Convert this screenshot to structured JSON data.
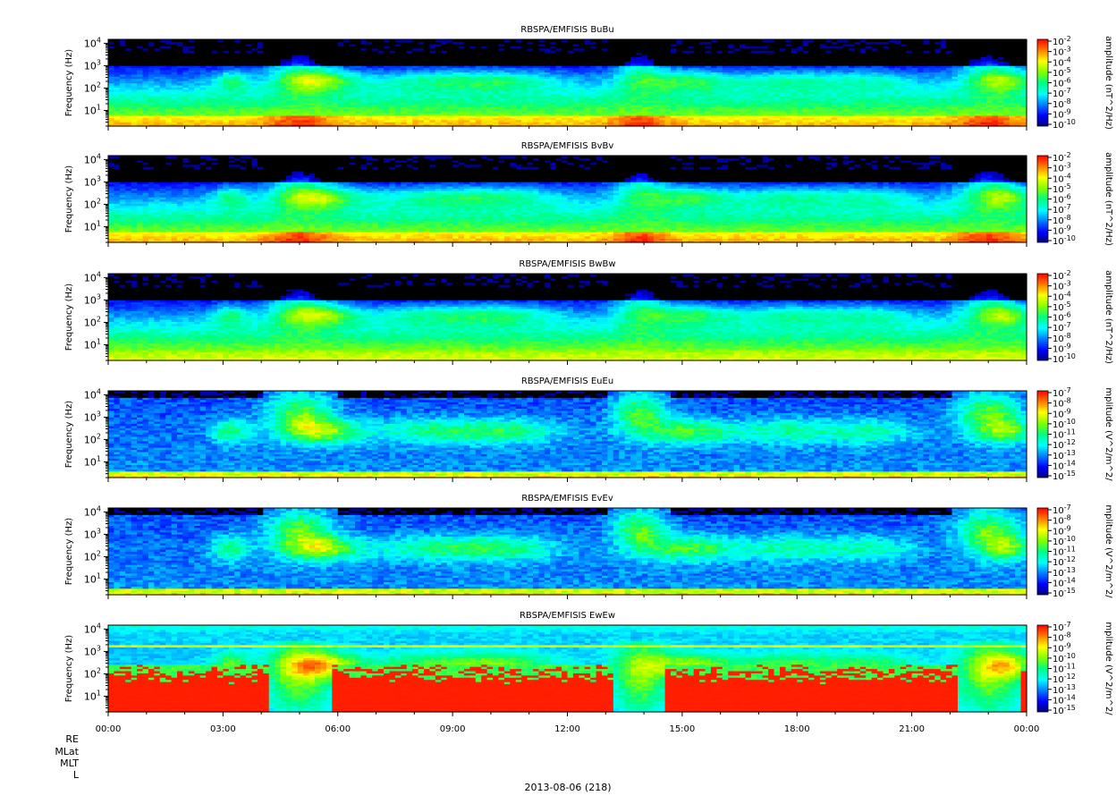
{
  "chart_data": [
    {
      "type": "heatmap",
      "title": "RBSPA/EMFISIS  BuBu",
      "ylabel": "Frequency (Hz)",
      "colorbar_label": "amplitude (nT^2/Hz)",
      "colorbar_ticks": [
        "10-2",
        "10-3",
        "10-4",
        "10-5",
        "10-6",
        "10-7",
        "10-8",
        "10-9",
        "10-10"
      ],
      "ylim": [
        2,
        15000
      ],
      "y_scale": "log",
      "y_ticks": [
        "104",
        "103",
        "102",
        "101"
      ],
      "x_ticks": [
        "00:00",
        "03:00",
        "06:00",
        "09:00",
        "12:00",
        "15:00",
        "18:00",
        "21:00",
        "00:00"
      ],
      "mode": "B"
    },
    {
      "type": "heatmap",
      "title": "RBSPA/EMFISIS  BvBv",
      "ylabel": "Frequency (Hz)",
      "colorbar_label": "amplitude (nT^2/Hz)",
      "colorbar_ticks": [
        "10-2",
        "10-3",
        "10-4",
        "10-5",
        "10-6",
        "10-7",
        "10-8",
        "10-9",
        "10-10"
      ],
      "ylim": [
        2,
        15000
      ],
      "y_scale": "log",
      "y_ticks": [
        "104",
        "103",
        "102",
        "101"
      ],
      "x_ticks": [
        "00:00",
        "03:00",
        "06:00",
        "09:00",
        "12:00",
        "15:00",
        "18:00",
        "21:00",
        "00:00"
      ],
      "mode": "B"
    },
    {
      "type": "heatmap",
      "title": "RBSPA/EMFISIS  BwBw",
      "ylabel": "Frequency (Hz)",
      "colorbar_label": "amplitude (nT^2/Hz)",
      "colorbar_ticks": [
        "10-2",
        "10-3",
        "10-4",
        "10-5",
        "10-6",
        "10-7",
        "10-8",
        "10-9",
        "10-10"
      ],
      "ylim": [
        2,
        15000
      ],
      "y_scale": "log",
      "y_ticks": [
        "104",
        "103",
        "102",
        "101"
      ],
      "x_ticks": [
        "00:00",
        "03:00",
        "06:00",
        "09:00",
        "12:00",
        "15:00",
        "18:00",
        "21:00",
        "00:00"
      ],
      "mode": "Bw"
    },
    {
      "type": "heatmap",
      "title": "RBSPA/EMFISIS  EuEu",
      "ylabel": "Frequency (Hz)",
      "colorbar_label": "mplitude (V^2/m^2/",
      "colorbar_ticks": [
        "10-7",
        "10-8",
        "10-9",
        "10-10",
        "10-11",
        "10-12",
        "10-13",
        "10-14",
        "10-15"
      ],
      "ylim": [
        2,
        15000
      ],
      "y_scale": "log",
      "y_ticks": [
        "104",
        "103",
        "102",
        "101"
      ],
      "x_ticks": [
        "00:00",
        "03:00",
        "06:00",
        "09:00",
        "12:00",
        "15:00",
        "18:00",
        "21:00",
        "00:00"
      ],
      "mode": "E"
    },
    {
      "type": "heatmap",
      "title": "RBSPA/EMFISIS  EvEv",
      "ylabel": "Frequency (Hz)",
      "colorbar_label": "mplitude (V^2/m^2/",
      "colorbar_ticks": [
        "10-7",
        "10-8",
        "10-9",
        "10-10",
        "10-11",
        "10-12",
        "10-13",
        "10-14",
        "10-15"
      ],
      "ylim": [
        2,
        15000
      ],
      "y_scale": "log",
      "y_ticks": [
        "104",
        "103",
        "102",
        "101"
      ],
      "x_ticks": [
        "00:00",
        "03:00",
        "06:00",
        "09:00",
        "12:00",
        "15:00",
        "18:00",
        "21:00",
        "00:00"
      ],
      "mode": "E"
    },
    {
      "type": "heatmap",
      "title": "RBSPA/EMFISIS  EwEw",
      "ylabel": "Frequency (Hz)",
      "colorbar_label": "mplitude (V^2/m^2/",
      "colorbar_ticks": [
        "10-7",
        "10-8",
        "10-9",
        "10-10",
        "10-11",
        "10-12",
        "10-13",
        "10-14",
        "10-15"
      ],
      "ylim": [
        2,
        15000
      ],
      "y_scale": "log",
      "y_ticks": [
        "104",
        "103",
        "102",
        "101"
      ],
      "x_ticks": [
        "00:00",
        "03:00",
        "06:00",
        "09:00",
        "12:00",
        "15:00",
        "18:00",
        "21:00",
        "00:00"
      ],
      "mode": "Ew"
    }
  ],
  "ephemeris_labels": [
    "RE",
    "MLat",
    "MLT",
    "L"
  ],
  "date_label": "2013-08-06 (218)",
  "colormap": [
    "#000080",
    "#0000ff",
    "#0080ff",
    "#00ffff",
    "#00ff80",
    "#80ff00",
    "#ffff00",
    "#ff8000",
    "#ff0000"
  ]
}
